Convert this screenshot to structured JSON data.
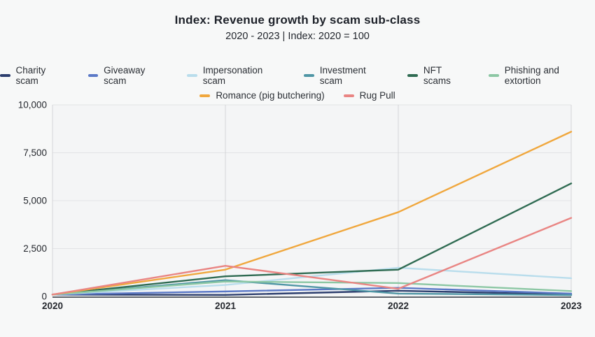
{
  "header": {
    "title": "Index: Revenue growth by scam sub-class",
    "subtitle": "2020 - 2023 | Index: 2020 = 100"
  },
  "legend": {
    "row_split": 6
  },
  "chart_data": {
    "type": "line",
    "title": "Index: Revenue growth by scam sub-class",
    "subtitle": "2020 - 2023 | Index: 2020 = 100",
    "x": [
      2020,
      2021,
      2022,
      2023
    ],
    "xtick_labels": [
      "2020",
      "2021",
      "2022",
      "2023"
    ],
    "ytick_values": [
      0,
      2500,
      5000,
      7500,
      10000
    ],
    "ytick_labels": [
      "0",
      "2,500",
      "5,000",
      "7,500",
      "10,000"
    ],
    "ylim": [
      0,
      10000
    ],
    "grid": true,
    "legend_position": "top",
    "series": [
      {
        "name": "Charity scam",
        "color": "#2c3e6e",
        "values": [
          100,
          80,
          300,
          100
        ]
      },
      {
        "name": "Giveaway scam",
        "color": "#5b79c7",
        "values": [
          100,
          260,
          450,
          150
        ]
      },
      {
        "name": "Impersonation scam",
        "color": "#b9ddec",
        "values": [
          100,
          600,
          1500,
          950
        ]
      },
      {
        "name": "Investment scam",
        "color": "#4f96a5",
        "values": [
          100,
          850,
          150,
          70
        ]
      },
      {
        "name": "NFT scams",
        "color": "#2f6b52",
        "values": [
          100,
          1050,
          1400,
          5900
        ]
      },
      {
        "name": "Phishing and extortion",
        "color": "#8cc7a4",
        "values": [
          100,
          780,
          700,
          280
        ]
      },
      {
        "name": "Romance (pig butchering)",
        "color": "#f0a73d",
        "values": [
          100,
          1400,
          4400,
          8600
        ]
      },
      {
        "name": "Rug Pull",
        "color": "#e98583",
        "values": [
          100,
          1600,
          400,
          4100
        ]
      }
    ],
    "colors": {
      "page_background": "#f7f8f8",
      "plot_background": "#f4f5f6",
      "grid_horizontal": "#e2e3e5",
      "grid_vertical": "#d4d5d8",
      "axis_line": "#5f646b",
      "tick_text": "#25282e"
    }
  }
}
